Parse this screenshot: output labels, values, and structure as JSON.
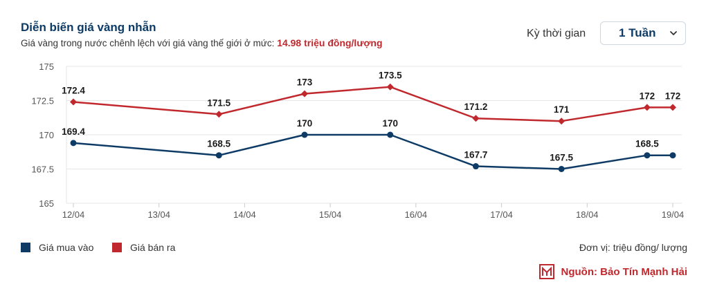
{
  "header": {
    "title": "Diễn biến giá vàng nhẫn",
    "subtitle_prefix": "Giá vàng trong nước chênh lệch với giá vàng thế giới ở mức:",
    "subtitle_highlight": "14.98 triệu đồng/lượng",
    "period_label": "Kỳ thời gian",
    "period_value": "1 Tuần"
  },
  "colors": {
    "buy": "#0d3b66",
    "sell": "#c0282d",
    "grid": "#e6e6e6",
    "axis": "#cccccc"
  },
  "chart_data": {
    "type": "line",
    "x_ticks": [
      "12/04",
      "13/04",
      "14/04",
      "15/04",
      "16/04",
      "17/04",
      "18/04",
      "19/04"
    ],
    "y_ticks": [
      "175",
      "172.5",
      "170",
      "167.5",
      "165"
    ],
    "ylim": [
      165,
      175
    ],
    "xlim": [
      0,
      7
    ],
    "series": [
      {
        "name": "Giá mua vào",
        "x": [
          0,
          1.7,
          2.7,
          3.7,
          4.7,
          5.7,
          6.7,
          7
        ],
        "values": [
          169.4,
          168.5,
          170,
          170,
          167.7,
          167.5,
          168.5,
          168.5
        ],
        "labels": [
          "169.4",
          "168.5",
          "170",
          "170",
          "167.7",
          "167.5",
          "168.5",
          ""
        ]
      },
      {
        "name": "Giá bán ra",
        "x": [
          0,
          1.7,
          2.7,
          3.7,
          4.7,
          5.7,
          6.7,
          7
        ],
        "values": [
          172.4,
          171.5,
          173,
          173.5,
          171.2,
          171,
          172,
          172
        ],
        "labels": [
          "172.4",
          "171.5",
          "173",
          "173.5",
          "171.2",
          "171",
          "172",
          "172"
        ]
      }
    ],
    "legend": [
      "Giá mua vào",
      "Giá bán ra"
    ]
  },
  "footer": {
    "unit": "Đơn vị: triệu đồng/ lượng",
    "source": "Nguồn: Bảo Tín Mạnh Hải"
  }
}
